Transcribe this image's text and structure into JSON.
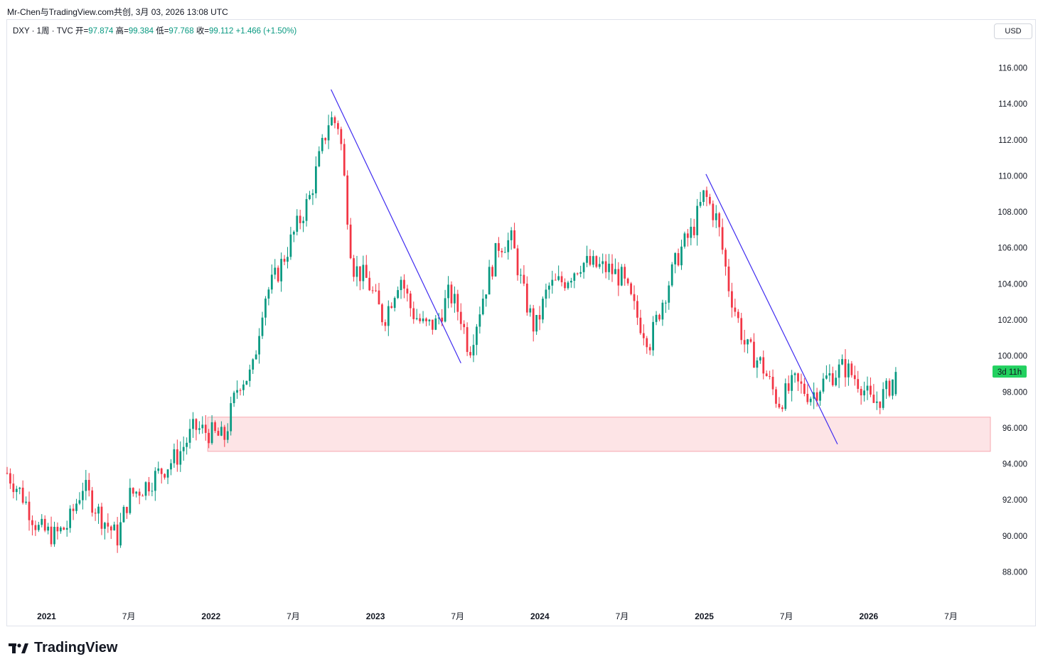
{
  "header": {
    "title": "Mr-Chen与TradingView.com共创, 3月 03, 2026 13:08 UTC"
  },
  "legend": {
    "symbol": "DXY · 1周 · TVC",
    "open_label": "开=",
    "open": "97.874",
    "high_label": "高=",
    "high": "99.384",
    "low_label": "低=",
    "low": "97.768",
    "close_label": "收=",
    "close": "99.112",
    "change": "+1.466 (+1.50%)"
  },
  "currency_button": "USD",
  "countdown": "3d 11h",
  "brand": "TradingView",
  "colors": {
    "up": "#089981",
    "down": "#f23645",
    "trendline": "#3f2bf0",
    "zone_fill": "#fde4e6",
    "zone_border": "#f7a8b0"
  },
  "chart_data": {
    "type": "candlestick",
    "symbol": "DXY",
    "interval": "1W",
    "y_ticks": [
      "116.000",
      "114.000",
      "112.000",
      "110.000",
      "108.000",
      "106.000",
      "104.000",
      "102.000",
      "100.000",
      "98.000",
      "96.000",
      "94.000",
      "92.000",
      "90.000",
      "88.000"
    ],
    "ylim": [
      86.6,
      117.4
    ],
    "x_ticks": [
      {
        "label": "2021",
        "t": 2021.0
      },
      {
        "label": "7月",
        "t": 2021.5
      },
      {
        "label": "2022",
        "t": 2022.0
      },
      {
        "label": "7月",
        "t": 2022.5
      },
      {
        "label": "2023",
        "t": 2023.0
      },
      {
        "label": "7月",
        "t": 2023.5
      },
      {
        "label": "2024",
        "t": 2024.0
      },
      {
        "label": "7月",
        "t": 2024.5
      },
      {
        "label": "2025",
        "t": 2025.0
      },
      {
        "label": "7月",
        "t": 2025.5
      },
      {
        "label": "2026",
        "t": 2026.0
      },
      {
        "label": "7月",
        "t": 2026.5
      }
    ],
    "xlim": [
      2020.76,
      2026.74
    ],
    "approx_close_path": [
      [
        2020.76,
        93.5
      ],
      [
        2020.85,
        92.3
      ],
      [
        2020.95,
        90.4
      ],
      [
        2021.05,
        90.0
      ],
      [
        2021.13,
        90.6
      ],
      [
        2021.22,
        92.8
      ],
      [
        2021.33,
        91.1
      ],
      [
        2021.43,
        89.9
      ],
      [
        2021.5,
        92.2
      ],
      [
        2021.6,
        92.8
      ],
      [
        2021.72,
        93.8
      ],
      [
        2021.8,
        94.5
      ],
      [
        2021.9,
        96.0
      ],
      [
        2022.0,
        95.7
      ],
      [
        2022.08,
        95.4
      ],
      [
        2022.17,
        98.6
      ],
      [
        2022.25,
        99.0
      ],
      [
        2022.32,
        103.2
      ],
      [
        2022.4,
        104.5
      ],
      [
        2022.5,
        106.7
      ],
      [
        2022.6,
        108.8
      ],
      [
        2022.72,
        113.2
      ],
      [
        2022.78,
        112.8
      ],
      [
        2022.86,
        105.0
      ],
      [
        2022.95,
        104.2
      ],
      [
        2023.05,
        102.0
      ],
      [
        2023.15,
        104.5
      ],
      [
        2023.22,
        102.5
      ],
      [
        2023.3,
        101.6
      ],
      [
        2023.37,
        101.8
      ],
      [
        2023.45,
        103.5
      ],
      [
        2023.52,
        102.2
      ],
      [
        2023.57,
        100.3
      ],
      [
        2023.65,
        103.2
      ],
      [
        2023.75,
        106.2
      ],
      [
        2023.83,
        106.4
      ],
      [
        2023.9,
        103.5
      ],
      [
        2023.97,
        101.4
      ],
      [
        2024.05,
        103.8
      ],
      [
        2024.15,
        104.2
      ],
      [
        2024.25,
        105.2
      ],
      [
        2024.33,
        105.0
      ],
      [
        2024.42,
        104.8
      ],
      [
        2024.5,
        104.3
      ],
      [
        2024.6,
        102.0
      ],
      [
        2024.67,
        100.8
      ],
      [
        2024.75,
        103.2
      ],
      [
        2024.85,
        105.8
      ],
      [
        2024.93,
        107.0
      ],
      [
        2025.0,
        109.0
      ],
      [
        2025.08,
        107.5
      ],
      [
        2025.15,
        103.8
      ],
      [
        2025.25,
        100.5
      ],
      [
        2025.35,
        99.5
      ],
      [
        2025.45,
        97.4
      ],
      [
        2025.55,
        98.5
      ],
      [
        2025.65,
        97.8
      ],
      [
        2025.75,
        98.8
      ],
      [
        2025.85,
        99.4
      ],
      [
        2025.95,
        98.5
      ],
      [
        2026.02,
        97.3
      ],
      [
        2026.1,
        97.9
      ],
      [
        2026.17,
        99.1
      ]
    ],
    "last_bar": {
      "open": 97.874,
      "high": 99.384,
      "low": 97.768,
      "close": 99.112
    },
    "trendlines": [
      {
        "from": {
          "t": 2022.73,
          "price": 114.8
        },
        "to": {
          "t": 2023.52,
          "price": 99.6
        }
      },
      {
        "from": {
          "t": 2025.01,
          "price": 110.1
        },
        "to": {
          "t": 2025.81,
          "price": 95.1
        }
      }
    ],
    "zones": [
      {
        "t_start": 2021.98,
        "t_end": 2026.74,
        "price_top": 96.6,
        "price_bottom": 94.7
      }
    ]
  }
}
